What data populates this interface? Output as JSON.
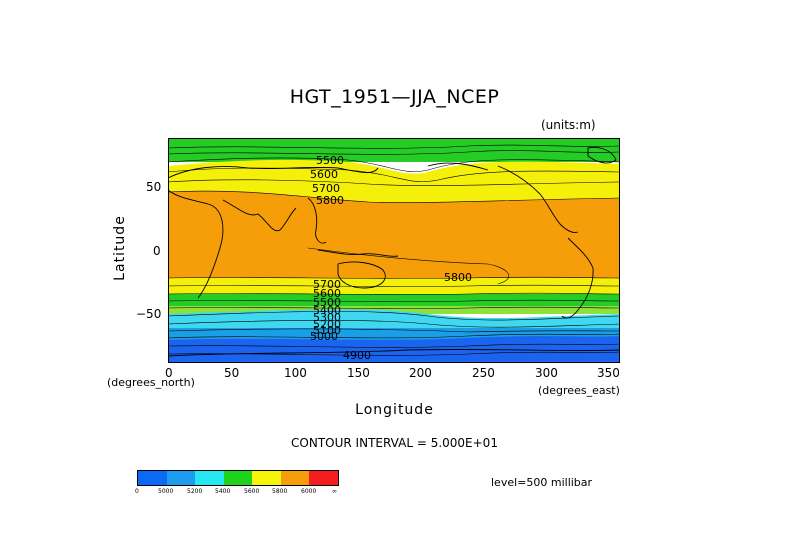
{
  "title": "HGT_1951—JJA_NCEP",
  "units": "(units:m)",
  "xlabel": "Longitude",
  "ylabel": "Latitude",
  "x_unit_label": "(degrees_east)",
  "y_unit_label": "(degrees_north)",
  "contour_interval": "CONTOUR INTERVAL = 5.000E+01",
  "level": "level=500 millibar",
  "x_ticks": [
    "0",
    "50",
    "100",
    "150",
    "200",
    "250",
    "300",
    "350"
  ],
  "y_ticks": [
    "50",
    "0",
    "−50"
  ],
  "contour_labels": [
    "5500",
    "5600",
    "5700",
    "5800",
    "5800",
    "5700",
    "5600",
    "5500",
    "5400",
    "5300",
    "5200",
    "5100",
    "5000",
    "4900"
  ],
  "colorbar": {
    "colors": [
      "#0a6af5",
      "#1e9cf0",
      "#26e6f2",
      "#1ed21e",
      "#f5f50a",
      "#f59e0a",
      "#f51e1e"
    ],
    "labels": [
      "0",
      "5000",
      "5200",
      "5400",
      "5600",
      "5800",
      "6000",
      "∞"
    ]
  },
  "map_colors": {
    "blue": "#1b64f0",
    "lightblue": "#1a9ee6",
    "cyan": "#3fd8f0",
    "green": "#25cc25",
    "yellow": "#f5f00a",
    "orange": "#f59e0a"
  }
}
